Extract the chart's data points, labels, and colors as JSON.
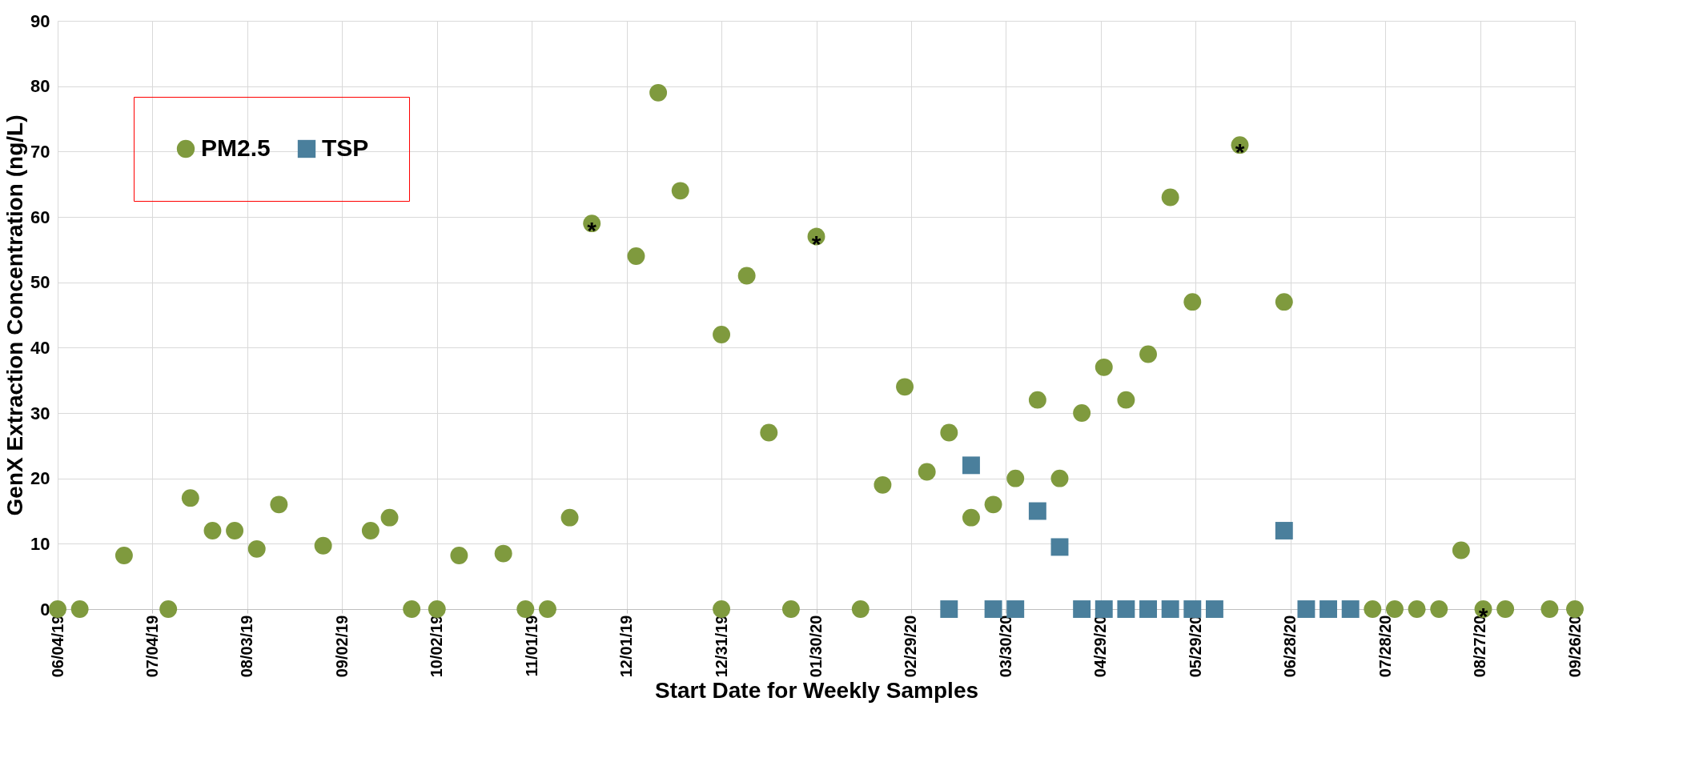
{
  "chart_data": {
    "type": "scatter",
    "xlabel": "Start Date for Weekly Samples",
    "ylabel": "GenX Extraction Concentration (ng/L)",
    "xlim": [
      "2019-06-04",
      "2020-09-26"
    ],
    "xticks": [
      {
        "value": "2019-06-04",
        "label": "06/04/19"
      },
      {
        "value": "2019-07-04",
        "label": "07/04/19"
      },
      {
        "value": "2019-08-03",
        "label": "08/03/19"
      },
      {
        "value": "2019-09-02",
        "label": "09/02/19"
      },
      {
        "value": "2019-10-02",
        "label": "10/02/19"
      },
      {
        "value": "2019-11-01",
        "label": "11/01/19"
      },
      {
        "value": "2019-12-01",
        "label": "12/01/19"
      },
      {
        "value": "2019-12-31",
        "label": "12/31/19"
      },
      {
        "value": "2020-01-30",
        "label": "01/30/20"
      },
      {
        "value": "2020-02-29",
        "label": "02/29/20"
      },
      {
        "value": "2020-03-30",
        "label": "03/30/20"
      },
      {
        "value": "2020-04-29",
        "label": "04/29/20"
      },
      {
        "value": "2020-05-29",
        "label": "05/29/20"
      },
      {
        "value": "2020-06-28",
        "label": "06/28/20"
      },
      {
        "value": "2020-07-28",
        "label": "07/28/20"
      },
      {
        "value": "2020-08-27",
        "label": "08/27/20"
      },
      {
        "value": "2020-09-26",
        "label": "09/26/20"
      }
    ],
    "ylim": [
      0,
      90
    ],
    "yticks": [
      0,
      10,
      20,
      30,
      40,
      50,
      60,
      70,
      80,
      90
    ],
    "grid": true,
    "legend": "top left",
    "series": [
      {
        "name": "PM2.5",
        "color": "#7f9a3e",
        "marker": "circle",
        "x": [
          "2019-06-04",
          "2019-06-11",
          "2019-06-25",
          "2019-07-09",
          "2019-07-16",
          "2019-07-23",
          "2019-07-30",
          "2019-08-06",
          "2019-08-13",
          "2019-08-27",
          "2019-09-11",
          "2019-09-17",
          "2019-09-24",
          "2019-10-02",
          "2019-10-09",
          "2019-10-23",
          "2019-10-30",
          "2019-11-06",
          "2019-11-13",
          "2019-11-20",
          "2019-12-04",
          "2019-12-11",
          "2019-12-18",
          "2019-12-31",
          "2019-12-31",
          "2020-01-08",
          "2020-01-15",
          "2020-01-22",
          "2020-01-30",
          "2020-02-13",
          "2020-02-20",
          "2020-02-27",
          "2020-03-05",
          "2020-03-12",
          "2020-03-19",
          "2020-03-26",
          "2020-04-02",
          "2020-04-09",
          "2020-04-16",
          "2020-04-23",
          "2020-04-30",
          "2020-05-07",
          "2020-05-14",
          "2020-05-21",
          "2020-05-28",
          "2020-06-12",
          "2020-06-26",
          "2020-07-24",
          "2020-07-31",
          "2020-08-07",
          "2020-08-14",
          "2020-08-21",
          "2020-08-28",
          "2020-09-04",
          "2020-09-18",
          "2020-09-26"
        ],
        "values": [
          0,
          0,
          8.2,
          0,
          17,
          12,
          12,
          9.2,
          16,
          9.7,
          12,
          14,
          0,
          0,
          8.2,
          8.5,
          0,
          0,
          14,
          59,
          54,
          79,
          64,
          42,
          0,
          51,
          27,
          0,
          57,
          0,
          19,
          34,
          21,
          27,
          14,
          16,
          20,
          32,
          20,
          30,
          37,
          32,
          39,
          63,
          47,
          71,
          47,
          0,
          0,
          0,
          0,
          9,
          0,
          0,
          0,
          0
        ]
      },
      {
        "name": "TSP",
        "color": "#4a7f9c",
        "marker": "square",
        "x": [
          "2020-03-12",
          "2020-03-19",
          "2020-03-26",
          "2020-04-02",
          "2020-04-09",
          "2020-04-16",
          "2020-04-23",
          "2020-04-30",
          "2020-05-07",
          "2020-05-14",
          "2020-05-21",
          "2020-05-28",
          "2020-06-04",
          "2020-06-26",
          "2020-07-03",
          "2020-07-10",
          "2020-07-17"
        ],
        "values": [
          0,
          22,
          0,
          0,
          15,
          9.5,
          0,
          0,
          0,
          0,
          0,
          0,
          0,
          12,
          0,
          0,
          0
        ]
      }
    ],
    "annotations": [
      {
        "text": "*",
        "x": "2019-11-20",
        "y": 59
      },
      {
        "text": "*",
        "x": "2020-01-30",
        "y": 57
      },
      {
        "text": "*",
        "x": "2020-06-12",
        "y": 71
      },
      {
        "text": "*",
        "x": "2020-08-28",
        "y": 0
      }
    ]
  }
}
